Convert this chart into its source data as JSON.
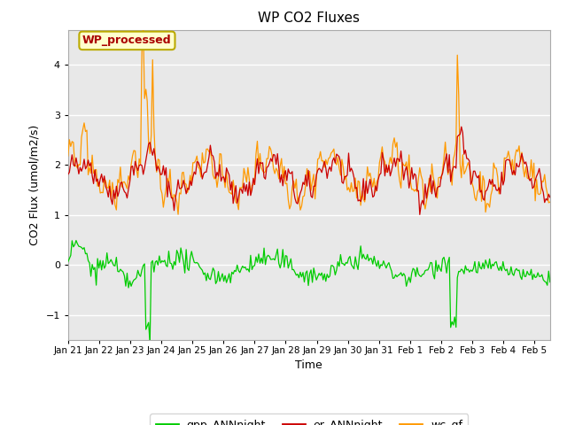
{
  "title": "WP CO2 Fluxes",
  "xlabel": "Time",
  "ylabel": "CO2 Flux (umol/m2/s)",
  "ylim": [
    -1.5,
    4.7
  ],
  "xlim_days": [
    0,
    15.5
  ],
  "x_tick_labels": [
    "Jan 21",
    "Jan 22",
    "Jan 23",
    "Jan 24",
    "Jan 25",
    "Jan 26",
    "Jan 27",
    "Jan 28",
    "Jan 29",
    "Jan 30",
    "Jan 31",
    "Feb 1",
    "Feb 2",
    "Feb 3",
    "Feb 4",
    "Feb 5"
  ],
  "x_tick_positions": [
    0,
    1,
    2,
    3,
    4,
    5,
    6,
    7,
    8,
    9,
    10,
    11,
    12,
    13,
    14,
    15
  ],
  "color_gpp": "#00cc00",
  "color_er": "#cc0000",
  "color_wc": "#ff9900",
  "legend_labels": [
    "gpp_ANNnight",
    "er_ANNnight",
    "wc_gf"
  ],
  "annotation_text": "WP_processed",
  "annotation_color": "#aa0000",
  "annotation_bg": "#ffffcc",
  "annotation_edge": "#bbaa00",
  "bg_color": "#e8e8e8",
  "n_points": 360,
  "seed": 42
}
